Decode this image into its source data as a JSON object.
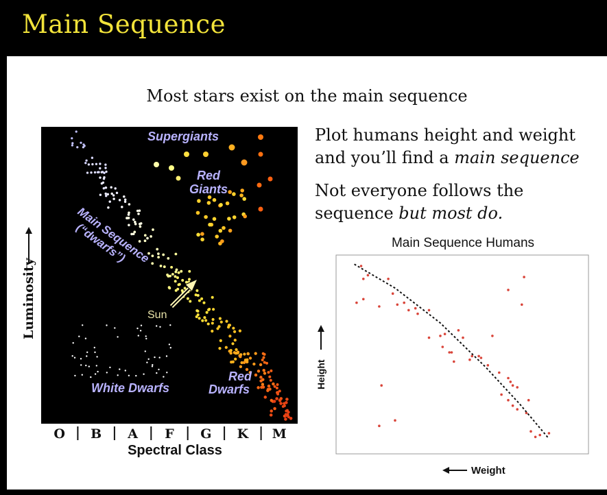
{
  "slide": {
    "title": "Main Sequence",
    "subtitle": "Most stars exist on the main sequence",
    "bullets": [
      {
        "line1": "Plot humans height and weight",
        "line2_plain": "and you’ll find a ",
        "line2_italic": "main sequence"
      },
      {
        "line1": "Not everyone follows the",
        "line2_plain": "sequence ",
        "line2_italic": "but most do."
      }
    ]
  },
  "hr_diagram": {
    "labels": {
      "supergiants": "Supergiants",
      "red_giants_1": "Red",
      "red_giants_2": "Giants",
      "main_seq_1": "Main Sequence",
      "main_seq_2": "(“dwarfs”)",
      "sun": "Sun",
      "white_dwarfs": "White Dwarfs",
      "red_dwarfs_1": "Red",
      "red_dwarfs_2": "Dwarfs"
    },
    "y_label": "Luminosity",
    "x_label": "Spectral Class",
    "classes": [
      "O",
      "B",
      "A",
      "F",
      "G",
      "K",
      "M"
    ],
    "colors": {
      "label": "#b9b3ff",
      "sun_label": "#e8e2a8",
      "background": "#000000"
    }
  },
  "chart_data": {
    "type": "scatter",
    "title": "Main Sequence Humans",
    "xlabel": "Weight",
    "ylabel": "Height",
    "points": [
      [
        0.05,
        0.97
      ],
      [
        0.08,
        0.92
      ],
      [
        0.06,
        0.9
      ],
      [
        0.17,
        0.9
      ],
      [
        0.03,
        0.77
      ],
      [
        0.06,
        0.79
      ],
      [
        0.13,
        0.75
      ],
      [
        0.19,
        0.82
      ],
      [
        0.24,
        0.77
      ],
      [
        0.26,
        0.73
      ],
      [
        0.29,
        0.74
      ],
      [
        0.35,
        0.73
      ],
      [
        0.35,
        0.58
      ],
      [
        0.4,
        0.59
      ],
      [
        0.41,
        0.53
      ],
      [
        0.45,
        0.5
      ],
      [
        0.48,
        0.62
      ],
      [
        0.5,
        0.58
      ],
      [
        0.54,
        0.48
      ],
      [
        0.57,
        0.48
      ],
      [
        0.63,
        0.59
      ],
      [
        0.7,
        0.84
      ],
      [
        0.77,
        0.91
      ],
      [
        0.76,
        0.76
      ],
      [
        0.66,
        0.39
      ],
      [
        0.7,
        0.36
      ],
      [
        0.71,
        0.34
      ],
      [
        0.72,
        0.32
      ],
      [
        0.74,
        0.31
      ],
      [
        0.79,
        0.24
      ],
      [
        0.7,
        0.24
      ],
      [
        0.72,
        0.21
      ],
      [
        0.74,
        0.19
      ],
      [
        0.8,
        0.07
      ],
      [
        0.82,
        0.04
      ],
      [
        0.84,
        0.05
      ],
      [
        0.88,
        0.06
      ],
      [
        0.14,
        0.32
      ],
      [
        0.13,
        0.1
      ],
      [
        0.2,
        0.13
      ],
      [
        0.53,
        0.46
      ],
      [
        0.58,
        0.47
      ],
      [
        0.61,
        0.43
      ],
      [
        0.44,
        0.5
      ],
      [
        0.21,
        0.76
      ],
      [
        0.3,
        0.71
      ],
      [
        0.42,
        0.6
      ],
      [
        0.46,
        0.45
      ],
      [
        0.67,
        0.27
      ],
      [
        0.78,
        0.17
      ]
    ],
    "fit_line": [
      [
        0.02,
        0.98
      ],
      [
        0.2,
        0.85
      ],
      [
        0.4,
        0.66
      ],
      [
        0.6,
        0.42
      ],
      [
        0.75,
        0.22
      ],
      [
        0.88,
        0.03
      ]
    ],
    "colors": {
      "points": "#d9453a",
      "fit": "#111111"
    }
  }
}
